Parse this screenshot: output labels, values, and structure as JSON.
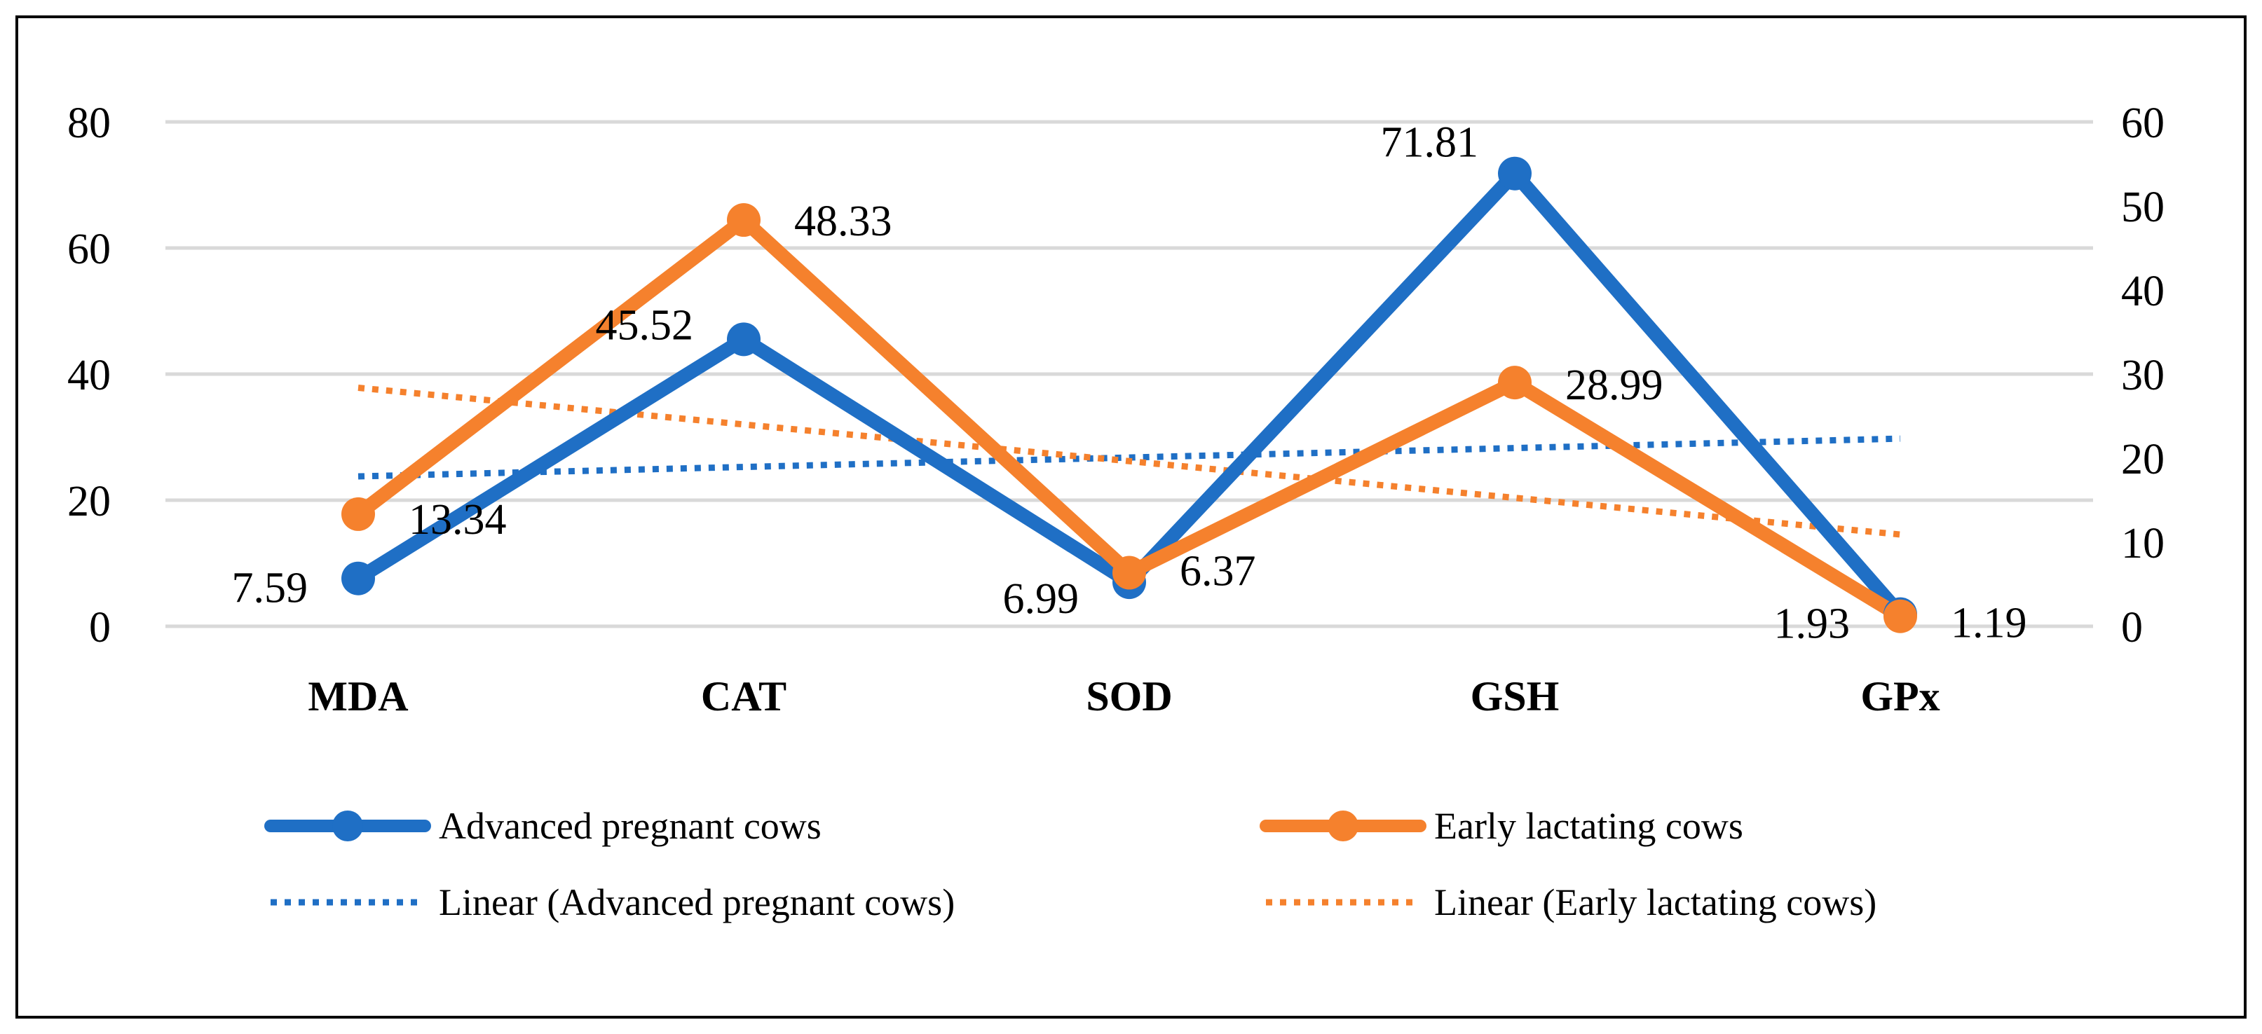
{
  "chart_data": {
    "type": "line",
    "title": "",
    "categories": [
      "MDA",
      "CAT",
      "SOD",
      "GSH",
      "GPx"
    ],
    "axes": {
      "left": {
        "min": 0,
        "max": 80,
        "ticks": [
          0,
          20,
          40,
          60,
          80
        ]
      },
      "right": {
        "min": 0,
        "max": 60,
        "ticks": [
          0,
          10,
          20,
          30,
          40,
          50,
          60
        ]
      }
    },
    "grid": true,
    "legend_position": "bottom",
    "colors": {
      "blue": "#1f6fc5",
      "orange": "#f5812d",
      "grid": "#d9d9d9"
    },
    "series": [
      {
        "name": "Advanced pregnant cows",
        "axis": "left",
        "color": "#1f6fc5",
        "values": [
          7.59,
          45.52,
          6.99,
          71.81,
          1.93
        ],
        "labels": [
          "7.59",
          "45.52",
          "6.99",
          "71.81",
          "1.93"
        ]
      },
      {
        "name": "Early lactating cows",
        "axis": "right",
        "color": "#f5812d",
        "values": [
          13.34,
          48.33,
          6.37,
          28.99,
          1.19
        ],
        "labels": [
          "13.34",
          "48.33",
          "6.37",
          "28.99",
          "1.19"
        ]
      }
    ],
    "trendlines": [
      {
        "name": "Linear (Advanced pregnant cows)",
        "of_series": 0,
        "color": "#1f6fc5"
      },
      {
        "name": "Linear (Early lactating cows)",
        "of_series": 1,
        "color": "#f5812d"
      }
    ],
    "legend": [
      {
        "label": "Advanced pregnant cows",
        "style": "solid",
        "color": "#1f6fc5"
      },
      {
        "label": "Early lactating cows",
        "style": "solid",
        "color": "#f5812d"
      },
      {
        "label": "Linear (Advanced pregnant cows)",
        "style": "dotted",
        "color": "#1f6fc5"
      },
      {
        "label": "Linear (Early lactating cows)",
        "style": "dotted",
        "color": "#f5812d"
      }
    ]
  }
}
